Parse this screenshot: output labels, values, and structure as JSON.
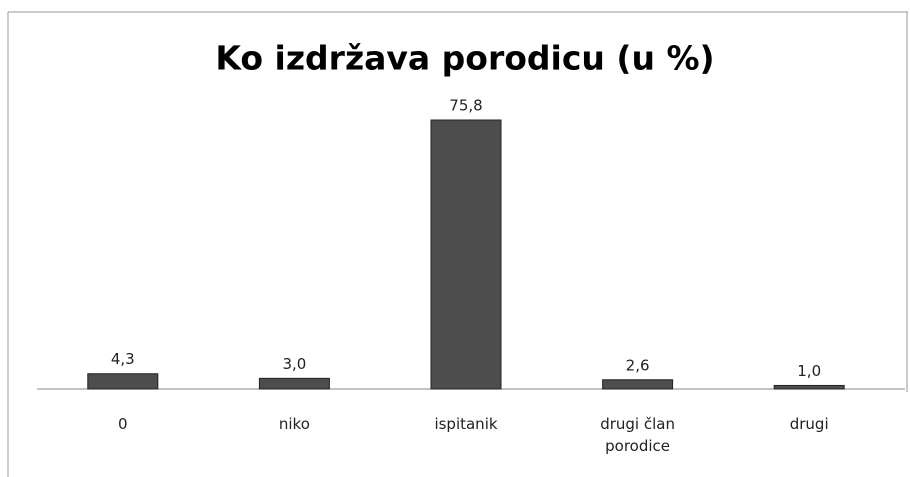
{
  "chart_data": {
    "type": "bar",
    "title": "Ko izdržava porodicu (u %)",
    "categories": [
      "0",
      "niko",
      "ispitanik",
      "drugi član porodice",
      "drugi"
    ],
    "values": [
      4.3,
      3.0,
      75.8,
      2.6,
      1.0
    ],
    "value_labels": [
      "4,3",
      "3,0",
      "75,8",
      "2,6",
      "1,0"
    ],
    "color": "#4d4d4d"
  }
}
